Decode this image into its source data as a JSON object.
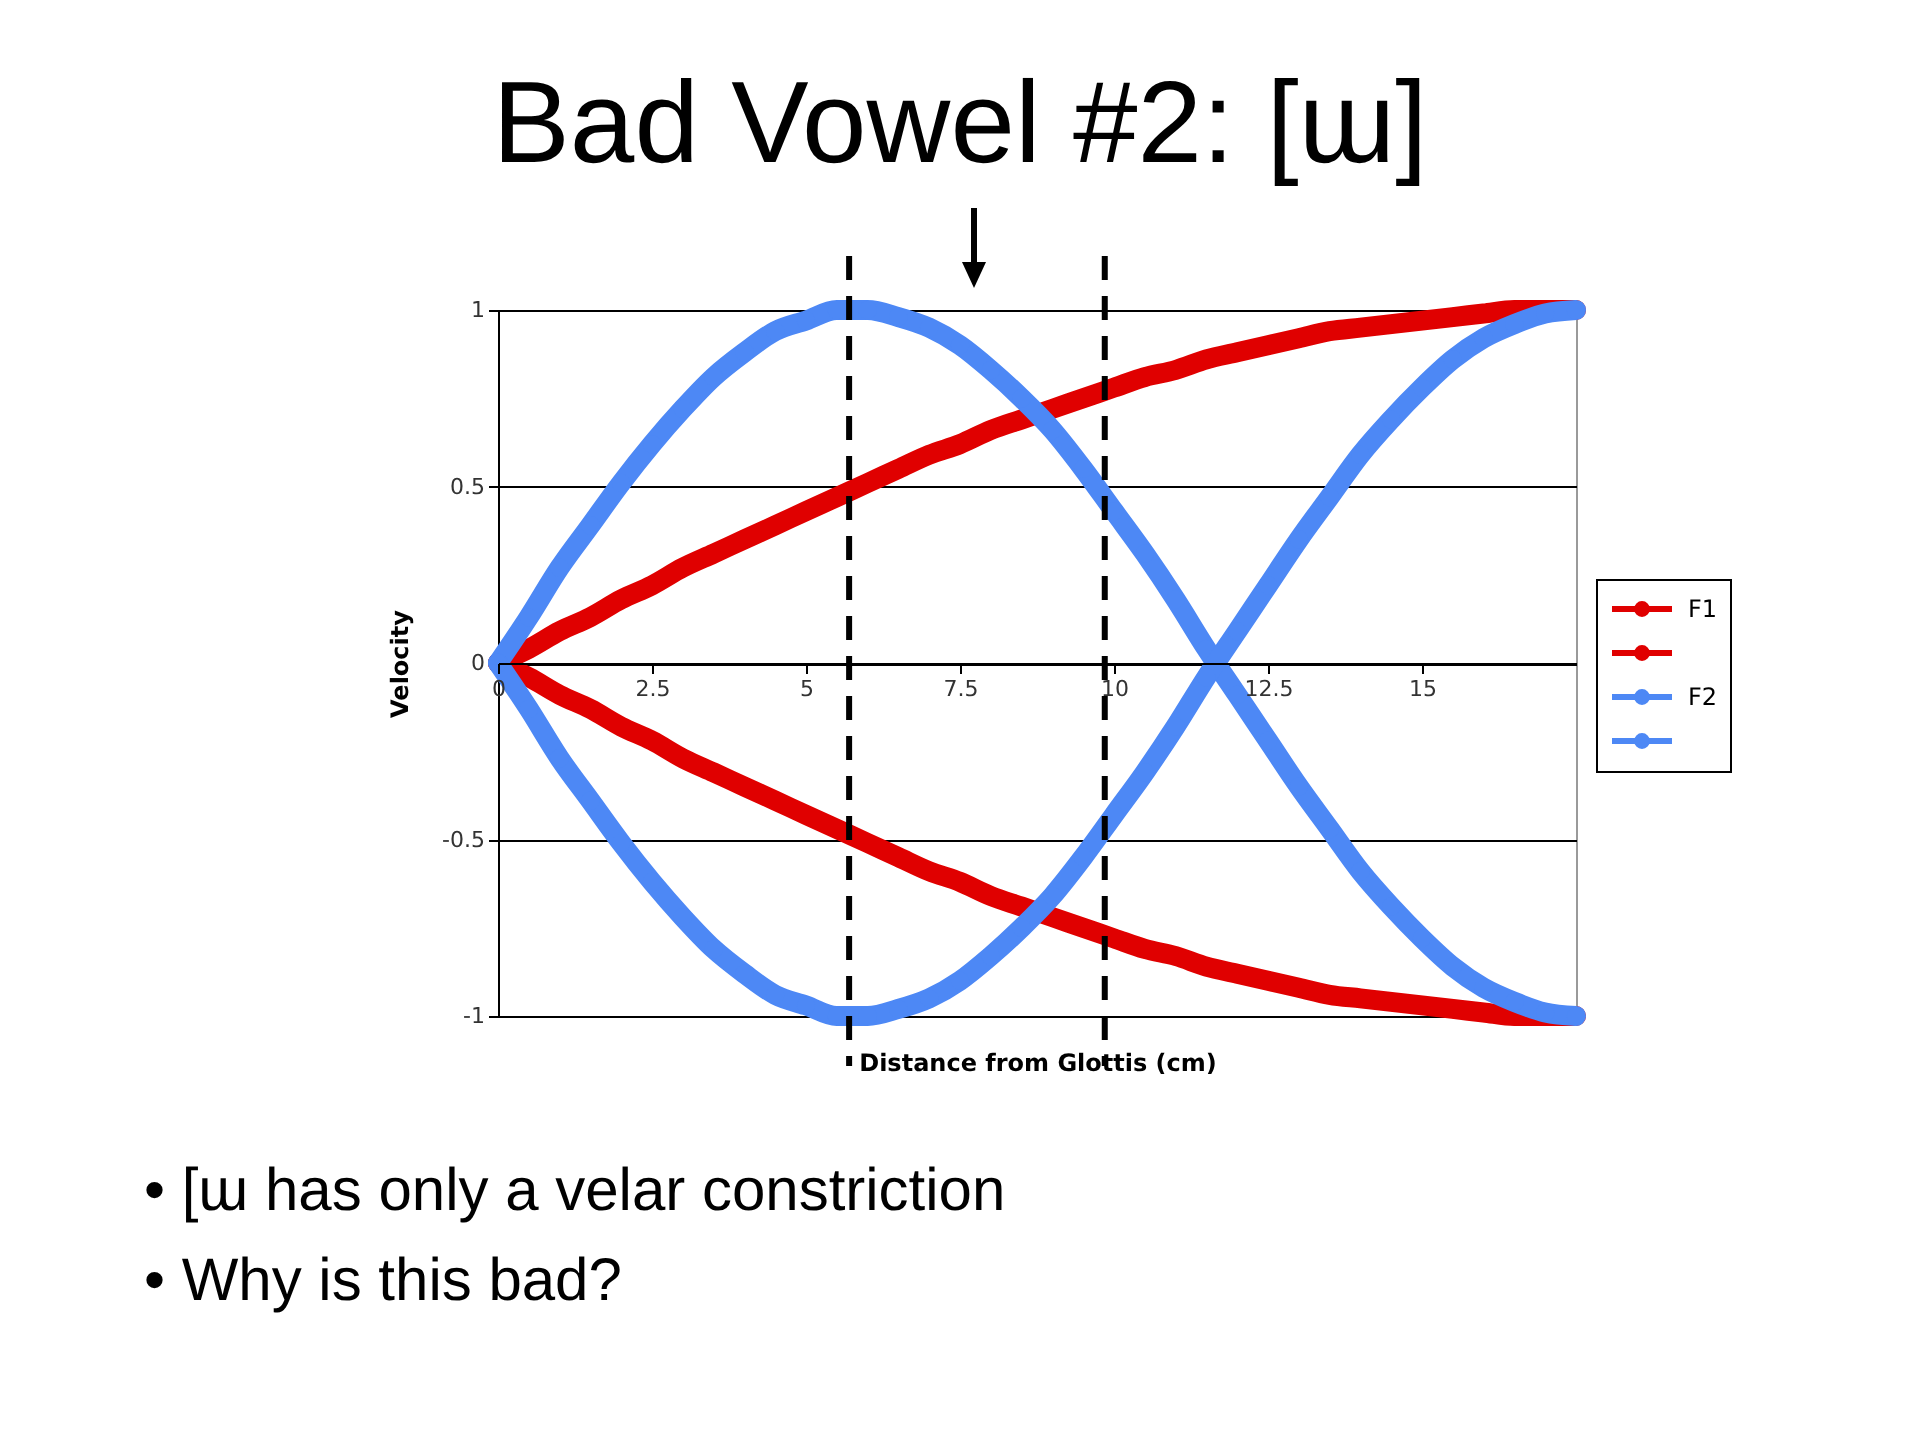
{
  "chart_data": {
    "type": "line",
    "title": "Bad Vowel #2: [ɯ]",
    "xlabel": "Distance from Glottis (cm)",
    "ylabel": "Velocity",
    "annotations": [
      "• [ɯ has only a velar constriction",
      "• Why is this bad?"
    ],
    "x": [
      0,
      0.5,
      1,
      1.5,
      2,
      2.5,
      3,
      3.5,
      4,
      4.5,
      5,
      5.5,
      6,
      6.5,
      7,
      7.5,
      8,
      8.5,
      9,
      9.5,
      10,
      10.5,
      11,
      11.5,
      12,
      12.5,
      13,
      13.5,
      14,
      14.5,
      15,
      15.5,
      16,
      16.5,
      17,
      17.5
    ],
    "series": [
      {
        "name": "F1",
        "color": "#e00000",
        "values": [
          0,
          0.04,
          0.09,
          0.13,
          0.18,
          0.22,
          0.27,
          0.31,
          0.35,
          0.39,
          0.43,
          0.47,
          0.51,
          0.55,
          0.59,
          0.62,
          0.66,
          0.69,
          0.72,
          0.75,
          0.78,
          0.81,
          0.83,
          0.86,
          0.88,
          0.9,
          0.92,
          0.94,
          0.95,
          0.96,
          0.97,
          0.98,
          0.99,
          1,
          1,
          1
        ]
      },
      {
        "color": "#e00000",
        "values": [
          0,
          -0.04,
          -0.09,
          -0.13,
          -0.18,
          -0.22,
          -0.27,
          -0.31,
          -0.35,
          -0.39,
          -0.43,
          -0.47,
          -0.51,
          -0.55,
          -0.59,
          -0.62,
          -0.66,
          -0.69,
          -0.72,
          -0.75,
          -0.78,
          -0.81,
          -0.83,
          -0.86,
          -0.88,
          -0.9,
          -0.92,
          -0.94,
          -0.95,
          -0.96,
          -0.97,
          -0.98,
          -0.99,
          -1,
          -1,
          -1
        ]
      },
      {
        "name": "F2",
        "color": "#4d88f5",
        "values": [
          0,
          0.13,
          0.27,
          0.39,
          0.51,
          0.62,
          0.72,
          0.81,
          0.88,
          0.94,
          0.97,
          1,
          1,
          0.98,
          0.95,
          0.9,
          0.83,
          0.75,
          0.66,
          0.55,
          0.43,
          0.31,
          0.18,
          0.04,
          -0.09,
          -0.22,
          -0.35,
          -0.47,
          -0.59,
          -0.69,
          -0.78,
          -0.86,
          -0.92,
          -0.96,
          -0.99,
          -1
        ]
      },
      {
        "color": "#4d88f5",
        "values": [
          0,
          -0.13,
          -0.27,
          -0.39,
          -0.51,
          -0.62,
          -0.72,
          -0.81,
          -0.88,
          -0.94,
          -0.97,
          -1,
          -1,
          -0.98,
          -0.95,
          -0.9,
          -0.83,
          -0.75,
          -0.66,
          -0.55,
          -0.43,
          -0.31,
          -0.18,
          -0.04,
          0.09,
          0.22,
          0.35,
          0.47,
          0.59,
          0.69,
          0.78,
          0.86,
          0.92,
          0.96,
          0.99,
          1
        ]
      }
    ],
    "xlim": [
      0,
      17.5
    ],
    "xticks": [
      0,
      2.5,
      5,
      7.5,
      10,
      12.5,
      15
    ],
    "ylim": [
      -1,
      1
    ],
    "yticks": [
      -1,
      -0.5,
      0,
      0.5,
      1
    ],
    "grid": "y",
    "legend": "right",
    "marker": "circle",
    "line_style": "solid",
    "ref_lines": [
      {
        "axis": "x",
        "value": 5.7,
        "color": "#000000",
        "line_style": "dashed"
      },
      {
        "axis": "x",
        "value": 9.85,
        "color": "#000000",
        "line_style": "dashed"
      }
    ]
  }
}
